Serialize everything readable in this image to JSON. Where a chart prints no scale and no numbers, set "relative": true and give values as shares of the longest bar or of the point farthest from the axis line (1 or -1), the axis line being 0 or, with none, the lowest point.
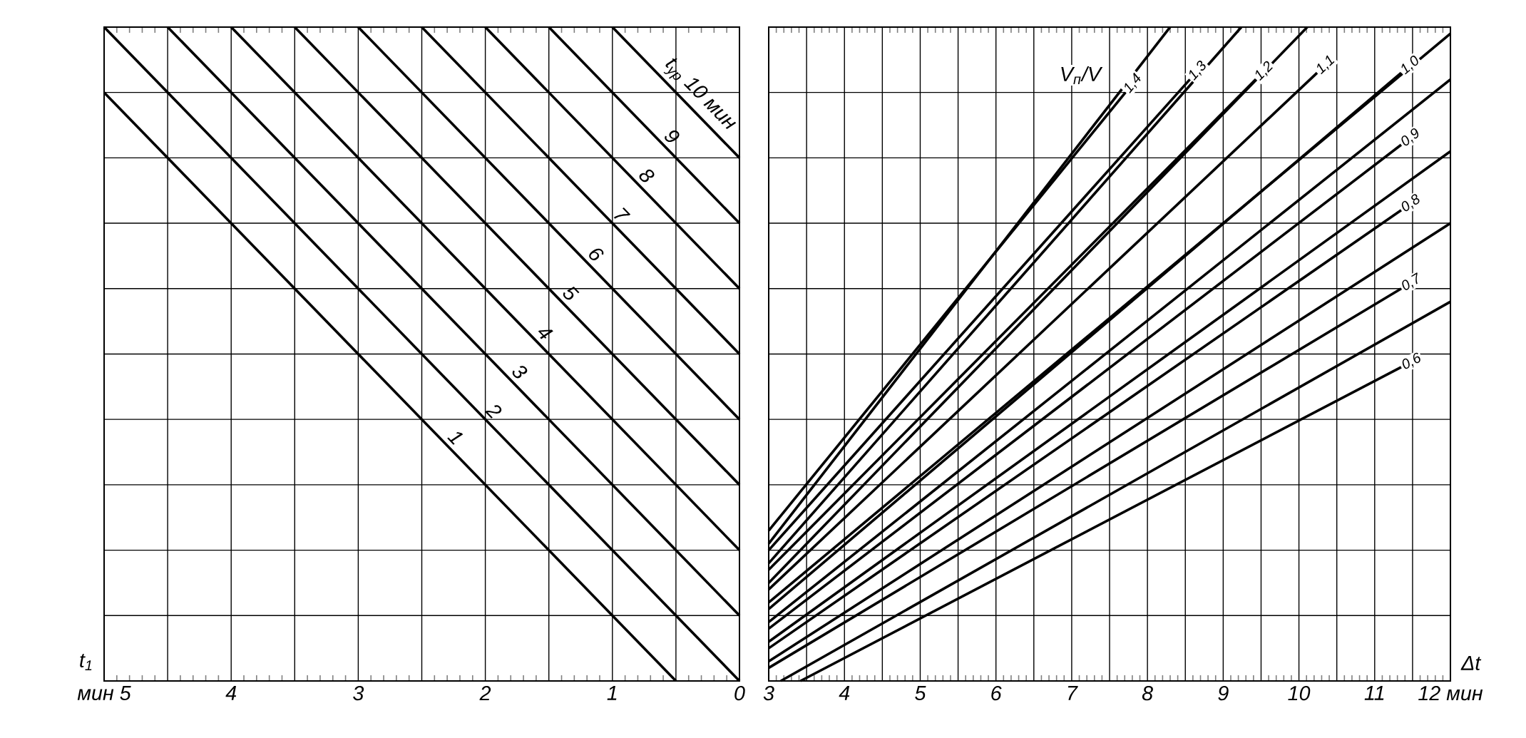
{
  "chart_data": [
    {
      "type": "line",
      "xlabel": "t$_{1}$",
      "relative": true,
      "grid": true,
      "line_style": "solid",
      "marker": "none",
      "xlim": [
        5,
        0
      ],
      "xticks": [
        {
          "value": 5,
          "label": "мин 5"
        },
        {
          "value": 4.5,
          "label": null
        },
        4,
        {
          "value": 3.5,
          "label": null
        },
        3,
        {
          "value": 2.5,
          "label": null
        },
        2,
        {
          "value": 1.5,
          "label": null
        },
        1,
        {
          "value": 0.5,
          "label": null
        },
        0
      ],
      "series": [
        {
          "name": "1",
          "color": "#000000",
          "x": [
            5,
            0.5
          ],
          "values": [
            0.9,
            0
          ]
        },
        {
          "name": "2",
          "color": "#000000",
          "x": [
            5,
            0
          ],
          "values": [
            1,
            0
          ]
        },
        {
          "name": "3",
          "color": "#000000",
          "x": [
            4.5,
            0
          ],
          "values": [
            1,
            0.1
          ]
        },
        {
          "name": "4",
          "color": "#000000",
          "x": [
            4,
            0
          ],
          "values": [
            1,
            0.2
          ]
        },
        {
          "name": "5",
          "color": "#000000",
          "x": [
            3.5,
            0
          ],
          "values": [
            1,
            0.3
          ]
        },
        {
          "name": "6",
          "color": "#000000",
          "x": [
            3,
            0
          ],
          "values": [
            1,
            0.4
          ]
        },
        {
          "name": "7",
          "color": "#000000",
          "x": [
            2.5,
            0
          ],
          "values": [
            1,
            0.5
          ]
        },
        {
          "name": "8",
          "color": "#000000",
          "x": [
            2,
            0
          ],
          "values": [
            1,
            0.6
          ]
        },
        {
          "name": "9",
          "color": "#000000",
          "x": [
            1.5,
            0
          ],
          "values": [
            1,
            0.7
          ]
        },
        {
          "name": "t$_{ур}$ 10 мин",
          "color": "#000000",
          "x": [
            1,
            0
          ],
          "values": [
            1,
            0.8
          ]
        }
      ]
    },
    {
      "type": "line",
      "xlabel": "Δt",
      "relative": true,
      "grid": true,
      "line_style": "solid",
      "marker": "none",
      "annotations": [
        "V$_{п}$/V"
      ],
      "xlim": [
        3,
        12
      ],
      "xticks": [
        3,
        {
          "value": 3.5,
          "label": null
        },
        4,
        {
          "value": 4.5,
          "label": null
        },
        5,
        {
          "value": 5.5,
          "label": null
        },
        6,
        {
          "value": 6.5,
          "label": null
        },
        7,
        {
          "value": 7.5,
          "label": null
        },
        8,
        {
          "value": 8.5,
          "label": null
        },
        9,
        {
          "value": 9.5,
          "label": null
        },
        10,
        {
          "value": 10.5,
          "label": null
        },
        11,
        {
          "value": 11.5,
          "label": null
        },
        {
          "value": 12,
          "label": "12 мин"
        }
      ],
      "series": [
        {
          "name": "1,4",
          "color": "#000000",
          "x": [
            3,
            7.71
          ],
          "values": [
            0.23,
            0.9
          ]
        },
        {
          "color": "#000000",
          "x": [
            3,
            8.3
          ],
          "values": [
            0.21,
            1
          ]
        },
        {
          "name": "1,3",
          "color": "#000000",
          "x": [
            3,
            8.56
          ],
          "values": [
            0.2,
            0.92
          ]
        },
        {
          "color": "#000000",
          "x": [
            3,
            9.24
          ],
          "values": [
            0.18,
            1
          ]
        },
        {
          "name": "1,2",
          "color": "#000000",
          "x": [
            3,
            9.43
          ],
          "values": [
            0.17,
            0.92
          ]
        },
        {
          "color": "#000000",
          "x": [
            3,
            10.11
          ],
          "values": [
            0.15,
            1
          ]
        },
        {
          "name": "1,1",
          "color": "#000000",
          "x": [
            3,
            10.24
          ],
          "values": [
            0.14,
            0.93
          ]
        },
        {
          "color": "#000000",
          "x": [
            3,
            12
          ],
          "values": [
            0.12,
            0.99
          ]
        },
        {
          "name": "1,0",
          "color": "#000000",
          "x": [
            3,
            11.35
          ],
          "values": [
            0.11,
            0.93
          ]
        },
        {
          "color": "#000000",
          "x": [
            3,
            12
          ],
          "values": [
            0.09,
            0.92
          ]
        },
        {
          "name": "0,9",
          "color": "#000000",
          "x": [
            3,
            11.35
          ],
          "values": [
            0.08,
            0.82
          ]
        },
        {
          "color": "#000000",
          "x": [
            3,
            12
          ],
          "values": [
            0.06,
            0.81
          ]
        },
        {
          "name": "0,8",
          "color": "#000000",
          "x": [
            3,
            11.35
          ],
          "values": [
            0.05,
            0.72
          ]
        },
        {
          "color": "#000000",
          "x": [
            3,
            12
          ],
          "values": [
            0.03,
            0.7
          ]
        },
        {
          "name": "0,7",
          "color": "#000000",
          "x": [
            3,
            11.35
          ],
          "values": [
            0.02,
            0.6
          ]
        },
        {
          "color": "#000000",
          "x": [
            3.16,
            12
          ],
          "values": [
            0,
            0.58
          ]
        },
        {
          "name": "0,6",
          "color": "#000000",
          "x": [
            3.42,
            11.35
          ],
          "values": [
            0,
            0.48
          ]
        }
      ]
    }
  ]
}
